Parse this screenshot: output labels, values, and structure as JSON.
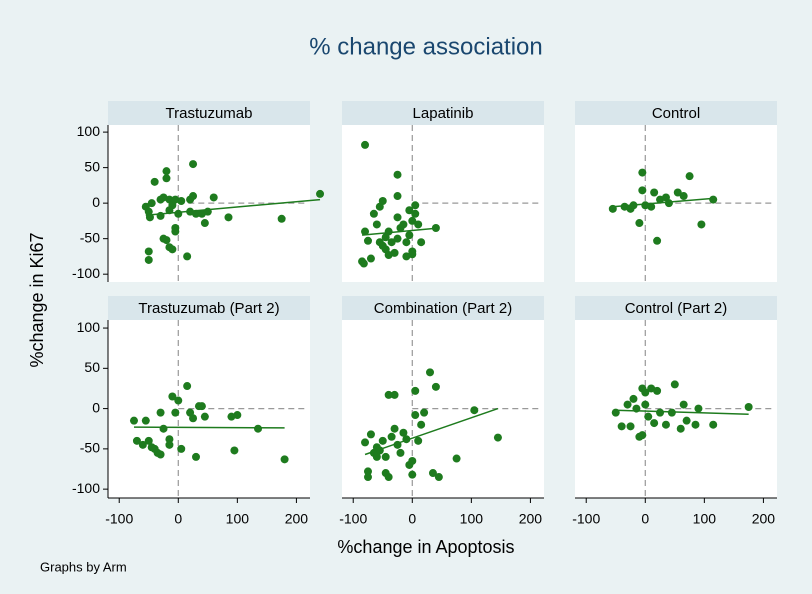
{
  "title": "% change association",
  "xlabel": "%change in Apoptosis",
  "ylabel": "%change in Ki67",
  "note": "Graphs by Arm",
  "xlim": [
    -119,
    223
  ],
  "xticks": [
    -100,
    0,
    100,
    200
  ],
  "ylim": [
    -111,
    110
  ],
  "yticks": [
    -100,
    -50,
    0,
    50,
    100
  ],
  "xline": 0,
  "yline": 0,
  "color": "#1e7b1e",
  "chart_data": [
    {
      "type": "scatter",
      "title": "Trastuzumab",
      "x": [
        -55,
        -50,
        -48,
        -45,
        -40,
        -50,
        -50,
        -30,
        -25,
        -20,
        -20,
        -15,
        -10,
        -5,
        -5,
        -5,
        -25,
        -20,
        -15,
        -10,
        -30,
        -15,
        0,
        5,
        15,
        20,
        20,
        25,
        25,
        30,
        40,
        45,
        50,
        60,
        85,
        175,
        240
      ],
      "y": [
        -5,
        -12,
        -20,
        0,
        30,
        -68,
        -80,
        5,
        8,
        45,
        35,
        5,
        -3,
        5,
        -35,
        -40,
        -50,
        -52,
        -62,
        -65,
        -18,
        -10,
        -15,
        3,
        -75,
        -12,
        5,
        10,
        55,
        -15,
        -15,
        -28,
        -12,
        8,
        -20,
        -22,
        13
      ],
      "fit": {
        "x": [
          -55,
          240
        ],
        "y": [
          -17,
          5
        ]
      }
    },
    {
      "type": "scatter",
      "title": "Lapatinib",
      "x": [
        -80,
        -85,
        -82,
        -80,
        -75,
        -70,
        -65,
        -60,
        -55,
        -50,
        -55,
        -50,
        -45,
        -45,
        -40,
        -40,
        -35,
        -30,
        -25,
        -25,
        -25,
        -25,
        -20,
        -15,
        -10,
        -10,
        -5,
        -5,
        0,
        0,
        5,
        5,
        0,
        10,
        15,
        40
      ],
      "y": [
        82,
        -82,
        -85,
        -40,
        -53,
        -78,
        -15,
        -30,
        -5,
        3,
        -55,
        -60,
        -48,
        -65,
        -40,
        -73,
        -55,
        -70,
        40,
        10,
        -20,
        -50,
        -35,
        -30,
        -55,
        -75,
        -10,
        -45,
        -68,
        -25,
        -3,
        -15,
        -72,
        -30,
        -55,
        -35
      ],
      "fit": {
        "x": [
          -85,
          45
        ],
        "y": [
          -45,
          -35
        ]
      }
    },
    {
      "type": "scatter",
      "title": "Control",
      "x": [
        -55,
        -35,
        -25,
        -20,
        -10,
        -5,
        -5,
        0,
        10,
        15,
        20,
        25,
        35,
        40,
        55,
        65,
        75,
        95,
        115
      ],
      "y": [
        -8,
        -5,
        -8,
        -3,
        -28,
        43,
        18,
        -3,
        -5,
        15,
        -53,
        5,
        8,
        0,
        15,
        10,
        38,
        -30,
        5
      ],
      "fit": {
        "x": [
          -55,
          120
        ],
        "y": [
          -5,
          7
        ]
      }
    },
    {
      "type": "scatter",
      "title": "Trastuzumab (Part 2)",
      "x": [
        -75,
        -70,
        -60,
        -55,
        -50,
        -45,
        -40,
        -35,
        -30,
        -30,
        -25,
        -15,
        -10,
        -15,
        0,
        -5,
        5,
        15,
        20,
        25,
        30,
        35,
        40,
        45,
        90,
        95,
        100,
        135,
        180
      ],
      "y": [
        -15,
        -40,
        -45,
        -15,
        -40,
        -48,
        -50,
        -55,
        -5,
        -57,
        -25,
        -38,
        15,
        -45,
        10,
        -5,
        -50,
        28,
        -5,
        -12,
        -60,
        3,
        3,
        -10,
        -10,
        -52,
        -8,
        -25,
        -63
      ],
      "fit": {
        "x": [
          -75,
          180
        ],
        "y": [
          -23,
          -24
        ]
      }
    },
    {
      "type": "scatter",
      "title": "Combination (Part 2)",
      "x": [
        -80,
        -75,
        -75,
        -70,
        -65,
        -60,
        -60,
        -55,
        -50,
        -45,
        -45,
        -40,
        -40,
        -35,
        -30,
        -30,
        -25,
        -20,
        -15,
        -10,
        -5,
        0,
        0,
        5,
        5,
        10,
        15,
        20,
        30,
        35,
        40,
        45,
        75,
        105,
        145
      ],
      "y": [
        -42,
        -85,
        -78,
        -32,
        -55,
        -48,
        -60,
        -52,
        -40,
        -60,
        -80,
        -85,
        17,
        -35,
        17,
        -25,
        -45,
        -55,
        -30,
        -38,
        -70,
        -65,
        -82,
        22,
        -8,
        -40,
        -20,
        -5,
        45,
        -80,
        27,
        -85,
        -62,
        -2,
        -36
      ],
      "fit": {
        "x": [
          -80,
          145
        ],
        "y": [
          -57,
          0
        ]
      }
    },
    {
      "type": "scatter",
      "title": "Control (Part 2)",
      "x": [
        -50,
        -40,
        -30,
        -25,
        -20,
        -15,
        -10,
        -5,
        -5,
        0,
        0,
        5,
        10,
        15,
        20,
        25,
        35,
        45,
        50,
        60,
        65,
        70,
        85,
        90,
        115,
        175
      ],
      "y": [
        -5,
        -22,
        5,
        -22,
        12,
        0,
        -35,
        25,
        -33,
        20,
        5,
        -10,
        25,
        -18,
        22,
        -5,
        -20,
        -5,
        30,
        -25,
        5,
        -15,
        -20,
        0,
        -20,
        2
      ],
      "fit": {
        "x": [
          -50,
          175
        ],
        "y": [
          -2,
          -7
        ]
      }
    }
  ]
}
